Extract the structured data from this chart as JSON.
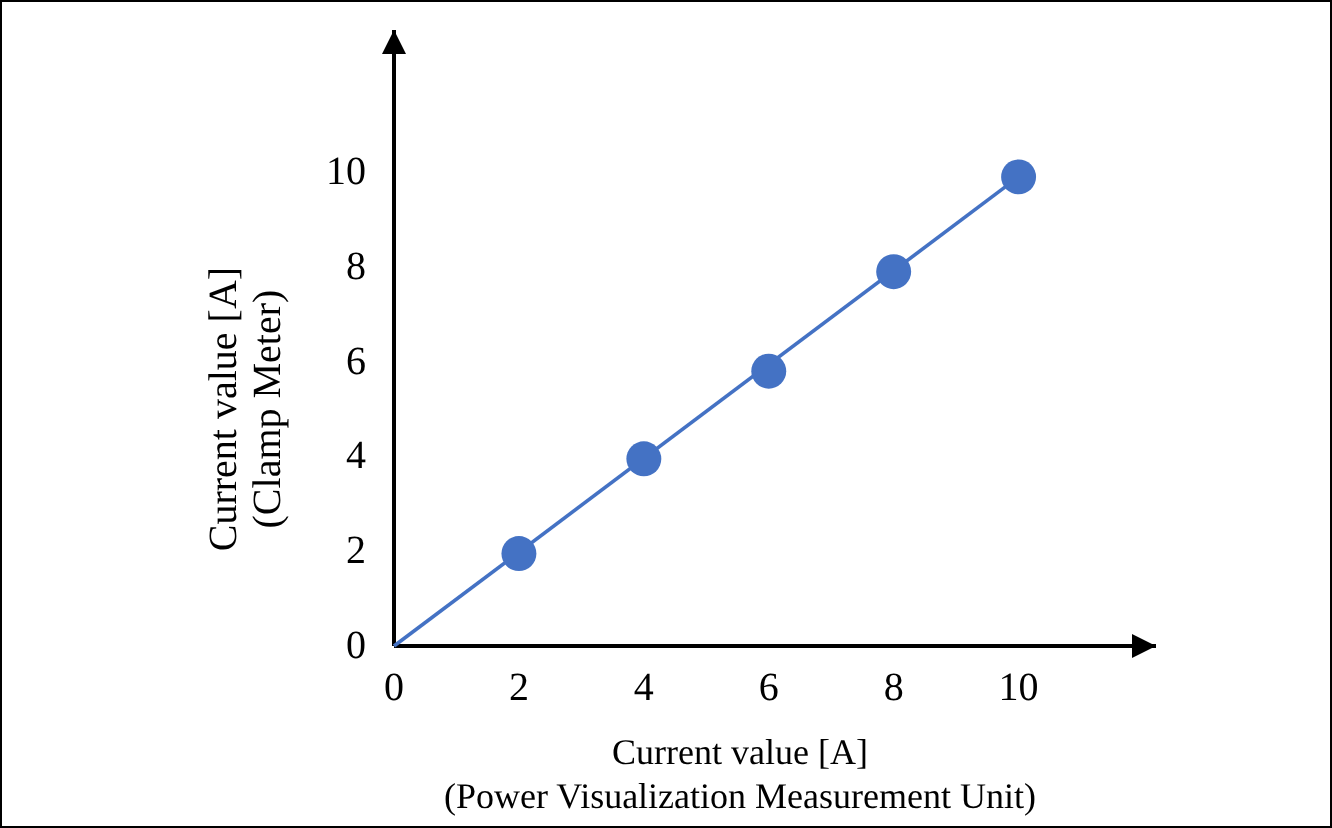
{
  "chart_data": {
    "type": "scatter",
    "xlabel": "Current value [A]\n(Power Visualization Measurement Unit)",
    "ylabel": "Current value [A]\n(Clamp Meter)",
    "xlim": [
      0,
      12.2
    ],
    "ylim": [
      0,
      13
    ],
    "xticks": [
      0,
      2,
      4,
      6,
      8,
      10
    ],
    "yticks": [
      0,
      2,
      4,
      6,
      8,
      10
    ],
    "grid": false,
    "series": [
      {
        "type": "line",
        "color": "#4472c4",
        "marker": "none",
        "x": [
          0,
          10
        ],
        "values": [
          0,
          9.9
        ]
      },
      {
        "color": "#4472c4",
        "marker": "circle",
        "x": [
          2,
          4,
          6,
          8,
          10
        ],
        "values": [
          1.95,
          3.95,
          5.8,
          7.9,
          9.9
        ]
      }
    ]
  }
}
